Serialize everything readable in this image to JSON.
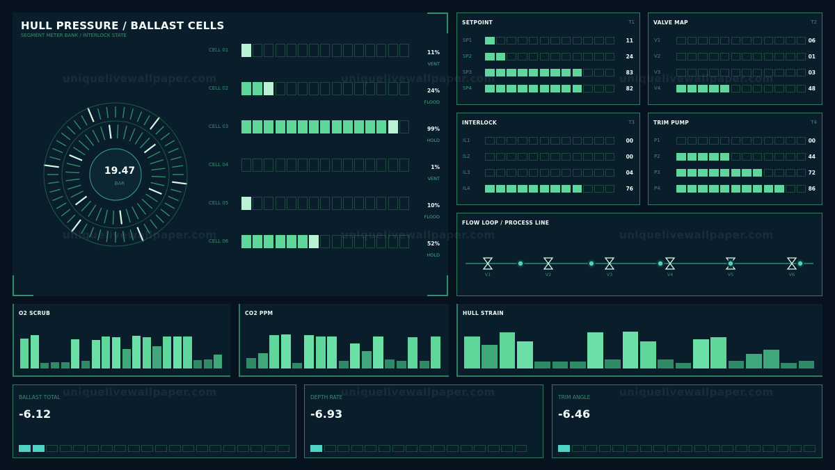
{
  "main": {
    "title": "HULL PRESSURE / BALLAST CELLS",
    "subtitle": "SEGMENT METER BANK / INTERLOCK STATE",
    "gauge": {
      "value": "19.47",
      "unit": "BAR"
    },
    "cells": [
      {
        "label": "CELL 01",
        "value": "11%",
        "state": "VENT",
        "lit": 1
      },
      {
        "label": "CELL 02",
        "value": "24%",
        "state": "FLOOD",
        "lit": 3
      },
      {
        "label": "CELL 03",
        "value": "99%",
        "state": "HOLD",
        "lit": 14
      },
      {
        "label": "CELL 04",
        "value": "1%",
        "state": "VENT",
        "lit": 0
      },
      {
        "label": "CELL 05",
        "value": "10%",
        "state": "FLOOD",
        "lit": 1
      },
      {
        "label": "CELL 06",
        "value": "52%",
        "state": "HOLD",
        "lit": 7
      }
    ]
  },
  "panels": [
    {
      "title": "SETPOINT",
      "tag": "T1",
      "rows": [
        {
          "label": "SP1",
          "value": "11",
          "lit": 1
        },
        {
          "label": "SP2",
          "value": "24",
          "lit": 2
        },
        {
          "label": "SP3",
          "value": "83",
          "lit": 9
        },
        {
          "label": "SP4",
          "value": "82",
          "lit": 9
        }
      ]
    },
    {
      "title": "VALVE MAP",
      "tag": "T2",
      "rows": [
        {
          "label": "V1",
          "value": "06",
          "lit": 0
        },
        {
          "label": "V2",
          "value": "01",
          "lit": 0
        },
        {
          "label": "V3",
          "value": "03",
          "lit": 0
        },
        {
          "label": "V4",
          "value": "48",
          "lit": 5
        }
      ]
    },
    {
      "title": "INTERLOCK",
      "tag": "T3",
      "rows": [
        {
          "label": "IL1",
          "value": "00",
          "lit": 0
        },
        {
          "label": "IL2",
          "value": "00",
          "lit": 0
        },
        {
          "label": "IL3",
          "value": "04",
          "lit": 0
        },
        {
          "label": "IL4",
          "value": "76",
          "lit": 9
        }
      ]
    },
    {
      "title": "TRIM PUMP",
      "tag": "T4",
      "rows": [
        {
          "label": "P1",
          "value": "00",
          "lit": 0
        },
        {
          "label": "P2",
          "value": "44",
          "lit": 5
        },
        {
          "label": "P3",
          "value": "72",
          "lit": 8
        },
        {
          "label": "P4",
          "value": "86",
          "lit": 10
        }
      ]
    }
  ],
  "flow": {
    "title": "FLOW LOOP / PROCESS LINE",
    "valves": [
      "V1",
      "V2",
      "V3",
      "V4",
      "V5",
      "V6"
    ]
  },
  "bar_panels": [
    {
      "title": "O2 SCRUB",
      "levels": [
        0.62,
        0.68,
        0.12,
        0.13,
        0.13,
        0.6,
        0.16,
        0.58,
        0.66,
        0.64,
        0.4,
        0.67,
        0.64,
        0.46,
        0.66,
        0.66,
        0.65,
        0.17,
        0.18,
        0.28
      ]
    },
    {
      "title": "CO2 PPM",
      "levels": [
        0.22,
        0.31,
        0.68,
        0.7,
        0.12,
        0.68,
        0.66,
        0.65,
        0.16,
        0.52,
        0.35,
        0.66,
        0.18,
        0.16,
        0.64,
        0.16,
        0.66
      ]
    },
    {
      "title": "HULL STRAIN",
      "levels": [
        0.66,
        0.49,
        0.74,
        0.56,
        0.14,
        0.14,
        0.14,
        0.74,
        0.18,
        0.75,
        0.55,
        0.18,
        0.12,
        0.6,
        0.64,
        0.16,
        0.3,
        0.38,
        0.12,
        0.15
      ]
    }
  ],
  "stats": [
    {
      "label": "BALLAST TOTAL",
      "value": "-6.12",
      "lit": 2
    },
    {
      "label": "DEPTH RATE",
      "value": "-6.93",
      "lit": 1
    },
    {
      "label": "TRIM ANGLE",
      "value": "-6.46",
      "lit": 1
    }
  ],
  "watermark": "uniquelivewallpaper.com",
  "colors": {
    "background": "#06121d",
    "panel": "#0a1d2b",
    "border": "#2c7d62",
    "accent": "#5fd69a",
    "highlight": "#b8f2d2",
    "cyan": "#4fd2c2",
    "muted": "#3f8b72"
  }
}
